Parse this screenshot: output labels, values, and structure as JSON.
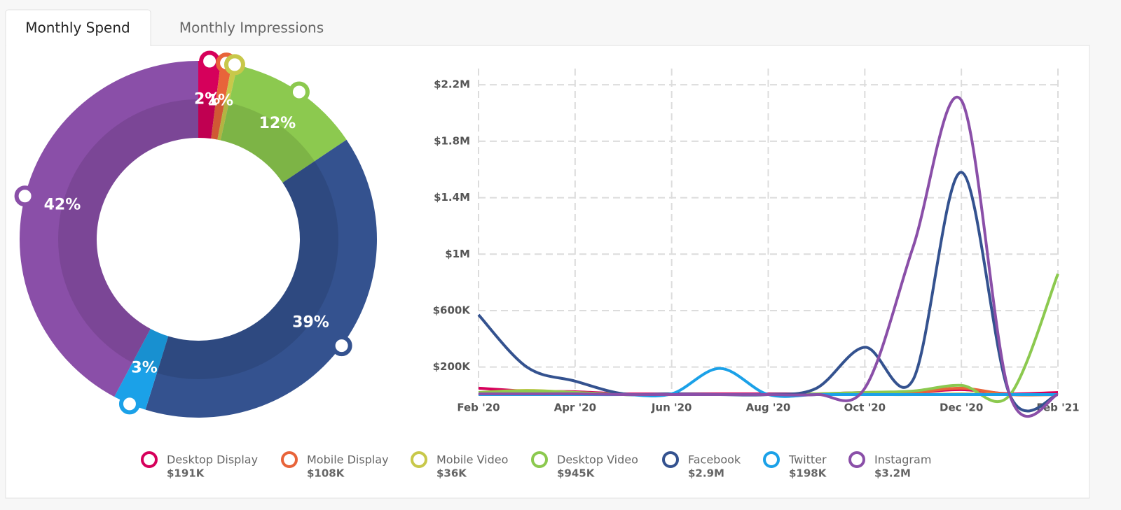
{
  "tabs": [
    "Monthly Spend",
    "Monthly Impressions"
  ],
  "chart_data": [
    {
      "type": "pie",
      "donut": true,
      "values": [
        2,
        1,
        0.5,
        12,
        39,
        3,
        42
      ],
      "value_labels": [
        "2%",
        "1%",
        null,
        "12%",
        "39%",
        "3%",
        "42%"
      ],
      "colors": [
        "#d6005b",
        "#e8643a",
        "#c8c84a",
        "#8cc94f",
        "#34528f",
        "#1ba1e8",
        "#8a4fa8"
      ]
    },
    {
      "type": "line",
      "grid": true,
      "categories": [
        "Feb '20",
        null,
        "Apr '20",
        null,
        "Jun '20",
        null,
        "Aug '20",
        null,
        "Oct '20",
        null,
        "Dec '20",
        null,
        "Feb '21"
      ],
      "ylim": [
        0,
        2300000
      ],
      "yticks": [
        {
          "value": 200000,
          "label": "$200K"
        },
        {
          "value": 600000,
          "label": "$600K"
        },
        {
          "value": 1000000,
          "label": "$1M"
        },
        {
          "value": 1400000,
          "label": "$1.4M"
        },
        {
          "value": 1800000,
          "label": "$1.8M"
        },
        {
          "value": 2200000,
          "label": "$2.2M"
        }
      ],
      "series": [
        {
          "name": "Desktop Display",
          "total_label": "$191K",
          "color": "#d6005b",
          "values": [
            50000,
            30000,
            25000,
            10000,
            10000,
            10000,
            10000,
            10000,
            20000,
            20000,
            40000,
            10000,
            20000
          ]
        },
        {
          "name": "Mobile Display",
          "total_label": "$108K",
          "color": "#e8643a",
          "values": [
            20000,
            20000,
            15000,
            5000,
            5000,
            5000,
            5000,
            5000,
            15000,
            20000,
            50000,
            5000,
            5000
          ]
        },
        {
          "name": "Mobile Video",
          "total_label": "$36K",
          "color": "#c8c84a",
          "values": [
            20000,
            35000,
            20000,
            5000,
            5000,
            5000,
            5000,
            5000,
            5000,
            5000,
            10000,
            5000,
            5000
          ]
        },
        {
          "name": "Desktop Video",
          "total_label": "$945K",
          "color": "#8cc94f",
          "values": [
            20000,
            30000,
            20000,
            5000,
            5000,
            5000,
            5000,
            10000,
            20000,
            30000,
            70000,
            0,
            860000
          ]
        },
        {
          "name": "Facebook",
          "total_label": "$2.9M",
          "color": "#34528f",
          "values": [
            570000,
            200000,
            100000,
            10000,
            10000,
            5000,
            5000,
            50000,
            340000,
            110000,
            1580000,
            5000,
            5000
          ]
        },
        {
          "name": "Twitter",
          "total_label": "$198K",
          "color": "#1ba1e8",
          "values": [
            5000,
            5000,
            5000,
            5000,
            10000,
            190000,
            5000,
            5000,
            5000,
            5000,
            5000,
            5000,
            5000
          ]
        },
        {
          "name": "Instagram",
          "total_label": "$3.2M",
          "color": "#8a4fa8",
          "values": [
            10000,
            10000,
            10000,
            5000,
            5000,
            5000,
            5000,
            5000,
            50000,
            1050000,
            2090000,
            5000,
            5000
          ]
        }
      ]
    }
  ]
}
